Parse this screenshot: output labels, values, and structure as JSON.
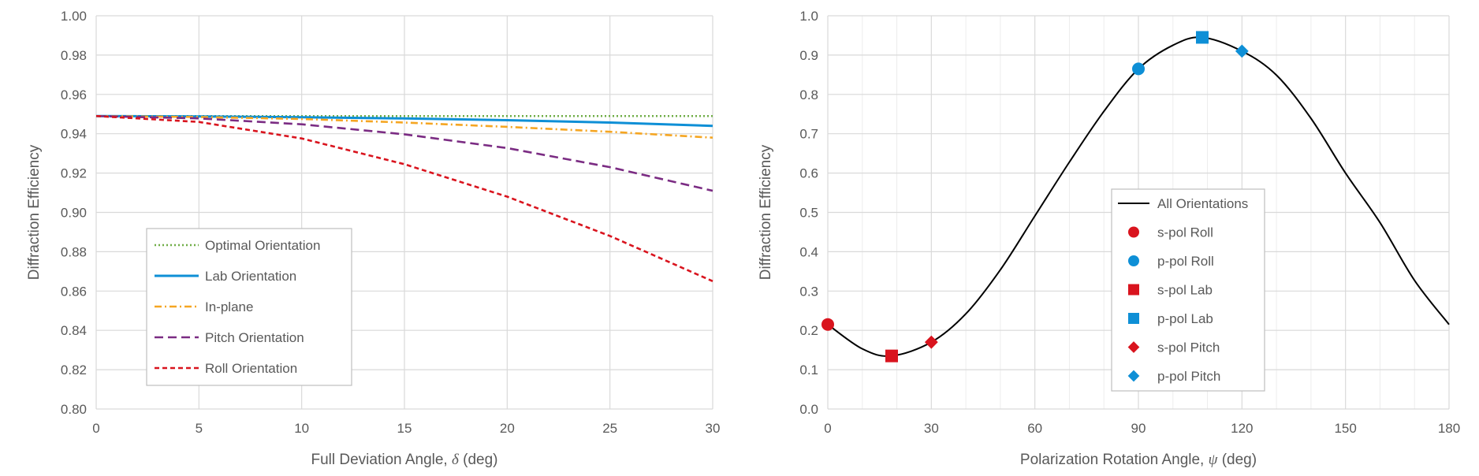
{
  "chart_data": [
    {
      "type": "line",
      "title": "",
      "xlabel_prefix": "Full Deviation Angle, ",
      "xlabel_symbol": "δ",
      "xlabel_suffix": " (deg)",
      "ylabel": "Diffraction Efficiency",
      "xlim": [
        0,
        30
      ],
      "ylim": [
        0.8,
        1.0
      ],
      "xticks": [
        0,
        5,
        10,
        15,
        20,
        25,
        30
      ],
      "xtick_labels": [
        "0",
        "5",
        "10",
        "15",
        "20",
        "25",
        "30"
      ],
      "yticks": [
        0.8,
        0.82,
        0.84,
        0.86,
        0.88,
        0.9,
        0.92,
        0.94,
        0.96,
        0.98,
        1.0
      ],
      "ytick_labels": [
        "0.80",
        "0.82",
        "0.84",
        "0.86",
        "0.88",
        "0.90",
        "0.92",
        "0.94",
        "0.96",
        "0.98",
        "1.00"
      ],
      "grid": true,
      "legend_position": "lower-left",
      "x": [
        0,
        5,
        10,
        15,
        20,
        25,
        30
      ],
      "series": [
        {
          "name": "Optimal Orientation",
          "color": "#70ad47",
          "dash": "dotted",
          "values": [
            0.949,
            0.949,
            0.949,
            0.949,
            0.949,
            0.949,
            0.949
          ]
        },
        {
          "name": "Lab Orientation",
          "color": "#0e8fd6",
          "dash": "solid",
          "values": [
            0.949,
            0.9488,
            0.9484,
            0.9478,
            0.9469,
            0.9457,
            0.944
          ]
        },
        {
          "name": "In-plane",
          "color": "#f5a623",
          "dash": "dashdot",
          "values": [
            0.949,
            0.9485,
            0.9475,
            0.9457,
            0.9435,
            0.941,
            0.938
          ]
        },
        {
          "name": "Pitch Orientation",
          "color": "#7b2c83",
          "dash": "dashed",
          "values": [
            0.949,
            0.9478,
            0.9448,
            0.9397,
            0.9327,
            0.923,
            0.911
          ]
        },
        {
          "name": "Roll Orientation",
          "color": "#d9141e",
          "dash": "shortdash",
          "values": [
            0.949,
            0.946,
            0.9376,
            0.9245,
            0.908,
            0.888,
            0.865
          ]
        }
      ]
    },
    {
      "type": "line",
      "title": "",
      "xlabel_prefix": "Polarization Rotation Angle, ",
      "xlabel_symbol": "ψ",
      "xlabel_suffix": " (deg)",
      "ylabel": "Diffraction Efficiency",
      "xlim": [
        0,
        180
      ],
      "ylim": [
        0.0,
        1.0
      ],
      "xticks": [
        0,
        30,
        60,
        90,
        120,
        150,
        180
      ],
      "xtick_labels": [
        "0",
        "30",
        "60",
        "90",
        "120",
        "150",
        "180"
      ],
      "yticks": [
        0.0,
        0.1,
        0.2,
        0.3,
        0.4,
        0.5,
        0.6,
        0.7,
        0.8,
        0.9,
        1.0
      ],
      "ytick_labels": [
        "0.0",
        "0.1",
        "0.2",
        "0.3",
        "0.4",
        "0.5",
        "0.6",
        "0.7",
        "0.8",
        "0.9",
        "1.0"
      ],
      "minor_x_grid_step": 10,
      "grid": true,
      "legend_position": "center-right",
      "curve": {
        "name": "All Orientations",
        "color": "#000000",
        "x": [
          0,
          10,
          18.5,
          30,
          40,
          50,
          60,
          70,
          80,
          90,
          100,
          108.5,
          120,
          130,
          140,
          150,
          160,
          170,
          180
        ],
        "values": [
          0.215,
          0.153,
          0.135,
          0.17,
          0.242,
          0.354,
          0.491,
          0.628,
          0.757,
          0.865,
          0.925,
          0.945,
          0.91,
          0.849,
          0.739,
          0.6,
          0.474,
          0.327,
          0.215
        ]
      },
      "markers": [
        {
          "name": "s-pol Roll",
          "shape": "circle",
          "color": "#d9141e",
          "x": 0,
          "y": 0.215
        },
        {
          "name": "p-pol Roll",
          "shape": "circle",
          "color": "#0e8fd6",
          "x": 90,
          "y": 0.865
        },
        {
          "name": "s-pol Lab",
          "shape": "square",
          "color": "#d9141e",
          "x": 18.5,
          "y": 0.135
        },
        {
          "name": "p-pol Lab",
          "shape": "square",
          "color": "#0e8fd6",
          "x": 108.5,
          "y": 0.945
        },
        {
          "name": "s-pol Pitch",
          "shape": "diamond",
          "color": "#d9141e",
          "x": 30,
          "y": 0.17
        },
        {
          "name": "p-pol Pitch",
          "shape": "diamond",
          "color": "#0e8fd6",
          "x": 120,
          "y": 0.91
        }
      ]
    }
  ]
}
